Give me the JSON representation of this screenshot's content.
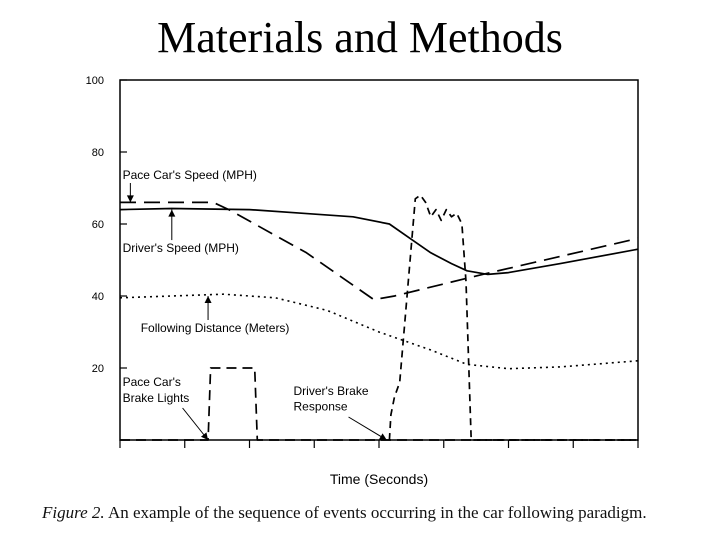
{
  "slide": {
    "title": "Materials and Methods"
  },
  "caption": {
    "label": "Figure 2.",
    "text": "An example of the sequence of events occurring in the car following paradigm."
  },
  "chart_data": {
    "type": "line",
    "title": "",
    "xlabel": "Time (Seconds)",
    "ylabel": "",
    "ylim": [
      0,
      100
    ],
    "xlim": [
      0,
      100
    ],
    "yticks": [
      20,
      40,
      60,
      80,
      100
    ],
    "xticks": [
      0,
      12.5,
      25,
      37.5,
      50,
      62.5,
      75,
      87.5,
      100
    ],
    "grid": false,
    "series": [
      {
        "name": "Pace Car's Speed (MPH)",
        "style": "longdash",
        "x": [
          0,
          18,
          21,
          36,
          49,
          53,
          70,
          100
        ],
        "y": [
          66,
          66,
          64,
          52,
          39,
          40,
          46,
          56
        ]
      },
      {
        "name": "Driver's Speed (MPH)",
        "style": "solid",
        "x": [
          0,
          10,
          25,
          35,
          45,
          52,
          56,
          60,
          64,
          67,
          71,
          75,
          85,
          100
        ],
        "y": [
          64,
          64.3,
          64,
          63,
          62,
          60,
          56,
          52,
          49,
          47,
          46,
          46.5,
          49,
          53
        ]
      },
      {
        "name": "Following Distance (Meters)",
        "style": "dotted",
        "x": [
          0,
          10,
          20,
          30,
          40,
          50,
          60,
          67,
          75,
          85,
          100
        ],
        "y": [
          39.5,
          40,
          40.5,
          39.5,
          36,
          30,
          25,
          21,
          19.8,
          20.3,
          22
        ]
      },
      {
        "name": "Pace Car's Brake Lights",
        "style": "dashed",
        "x": [
          0,
          17,
          17.5,
          26,
          26.5,
          100
        ],
        "y": [
          0,
          0,
          20,
          20,
          0,
          0
        ]
      },
      {
        "name": "Driver's Brake Response",
        "style": "shortdash",
        "x": [
          52,
          52.3,
          53,
          54,
          56,
          57,
          58,
          59,
          60,
          61,
          62,
          63,
          64,
          65,
          66,
          66.8,
          67.8,
          100
        ],
        "y": [
          0,
          7,
          12,
          16,
          50,
          67,
          68,
          66,
          62,
          64,
          61,
          64,
          62,
          63,
          60,
          44,
          0,
          0
        ]
      }
    ],
    "annotations": [
      {
        "text": "Pace Car's Speed (MPH)",
        "x": 0.5,
        "y": 72.5,
        "arrow_x": 2,
        "arrow_y": 66
      },
      {
        "text": "Driver's Speed (MPH)",
        "x": 0.5,
        "y": 52.2,
        "arrow_x": 10,
        "arrow_y": 64
      },
      {
        "text": "Following Distance (Meters)",
        "x": 4,
        "y": 30,
        "arrow_x": 17,
        "arrow_y": 40
      },
      {
        "text": "Pace Car's",
        "x": 0.5,
        "y": 15,
        "arrow_x": 17,
        "arrow_y": 0
      },
      {
        "text": "Brake Lights",
        "x": 0.5,
        "y": 10.5
      },
      {
        "text": "Driver's Brake",
        "x": 33.5,
        "y": 12.5,
        "arrow_x": 51.5,
        "arrow_y": 0
      },
      {
        "text": "Response",
        "x": 33.5,
        "y": 8.2
      }
    ]
  }
}
